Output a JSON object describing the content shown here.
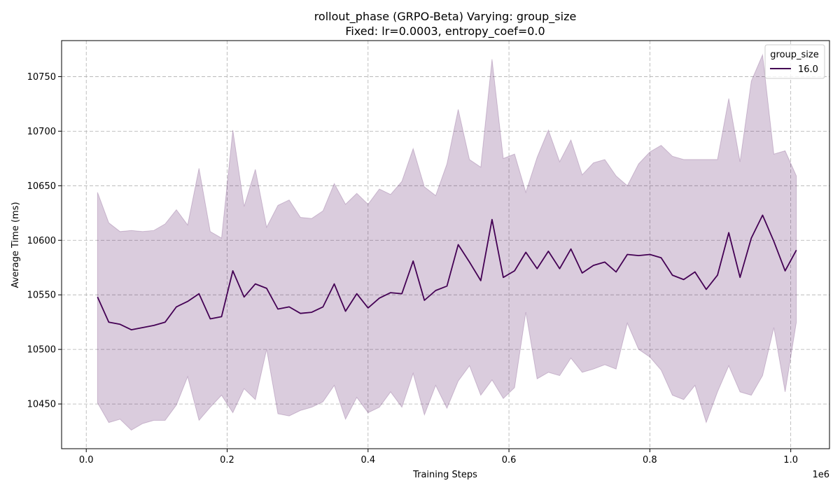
{
  "chart_data": {
    "type": "line",
    "title": "rollout_phase (GRPO-Beta) Varying: group_size",
    "subtitle": "Fixed: lr=0.0003, entropy_coef=0.0",
    "xlabel": "Training Steps",
    "ylabel": "Average Time (ms)",
    "x_offset_label": "1e6",
    "xlim": [
      -35000,
      1055000
    ],
    "ylim": [
      10409,
      10783
    ],
    "x_ticks": [
      0,
      200000,
      400000,
      600000,
      800000,
      1000000
    ],
    "x_tick_labels": [
      "0.0",
      "0.2",
      "0.4",
      "0.6",
      "0.8",
      "1.0"
    ],
    "y_ticks": [
      10450,
      10500,
      10550,
      10600,
      10650,
      10700,
      10750
    ],
    "y_tick_labels": [
      "10450",
      "10500",
      "10550",
      "10600",
      "10650",
      "10700",
      "10750"
    ],
    "grid": true,
    "legend": {
      "title": "group_size",
      "position": "top-right"
    },
    "colors": {
      "line": "#440154",
      "band": "#440154"
    },
    "series": [
      {
        "name": "16.0",
        "x": [
          16000,
          32000,
          48000,
          64000,
          80000,
          96000,
          112000,
          128000,
          144000,
          160000,
          176000,
          192000,
          208000,
          224000,
          240000,
          256000,
          272000,
          288000,
          304000,
          320000,
          336000,
          352000,
          368000,
          384000,
          400000,
          416000,
          432000,
          448000,
          464000,
          480000,
          496000,
          512000,
          528000,
          544000,
          560000,
          576000,
          592000,
          608000,
          624000,
          640000,
          656000,
          672000,
          688000,
          704000,
          720000,
          736000,
          752000,
          768000,
          784000,
          800000,
          816000,
          832000,
          848000,
          864000,
          880000,
          896000,
          912000,
          928000,
          944000,
          960000,
          976000,
          992000,
          1008000
        ],
        "values": [
          10548,
          10525,
          10523,
          10518,
          10520,
          10522,
          10525,
          10539,
          10544,
          10551,
          10528,
          10530,
          10572,
          10548,
          10560,
          10556,
          10537,
          10539,
          10533,
          10534,
          10539,
          10560,
          10535,
          10551,
          10538,
          10547,
          10552,
          10551,
          10581,
          10545,
          10554,
          10558,
          10596,
          10580,
          10563,
          10619,
          10566,
          10572,
          10589,
          10574,
          10590,
          10574,
          10592,
          10570,
          10577,
          10580,
          10571,
          10587,
          10586,
          10587,
          10584,
          10568,
          10564,
          10571,
          10555,
          10568,
          10607,
          10566,
          10602,
          10623,
          10599,
          10572,
          10591
        ],
        "upper": [
          10644,
          10616,
          10608,
          10609,
          10608,
          10609,
          10615,
          10628,
          10614,
          10666,
          10608,
          10602,
          10701,
          10631,
          10665,
          10612,
          10632,
          10637,
          10621,
          10620,
          10627,
          10652,
          10633,
          10643,
          10633,
          10647,
          10642,
          10654,
          10684,
          10649,
          10641,
          10670,
          10720,
          10674,
          10667,
          10766,
          10675,
          10679,
          10644,
          10676,
          10701,
          10672,
          10692,
          10660,
          10671,
          10674,
          10659,
          10650,
          10670,
          10681,
          10687,
          10677,
          10674,
          10674,
          10674,
          10674,
          10730,
          10672,
          10746,
          10770,
          10679,
          10682,
          10659
        ],
        "lower": [
          10451,
          10433,
          10436,
          10426,
          10432,
          10435,
          10435,
          10449,
          10475,
          10435,
          10447,
          10458,
          10442,
          10464,
          10454,
          10500,
          10441,
          10439,
          10444,
          10447,
          10452,
          10467,
          10436,
          10456,
          10442,
          10447,
          10461,
          10447,
          10478,
          10440,
          10467,
          10446,
          10471,
          10485,
          10458,
          10472,
          10455,
          10465,
          10534,
          10473,
          10479,
          10476,
          10492,
          10479,
          10482,
          10486,
          10482,
          10524,
          10500,
          10493,
          10481,
          10458,
          10454,
          10467,
          10433,
          10461,
          10485,
          10461,
          10458,
          10476,
          10520,
          10461,
          10525
        ]
      }
    ]
  }
}
